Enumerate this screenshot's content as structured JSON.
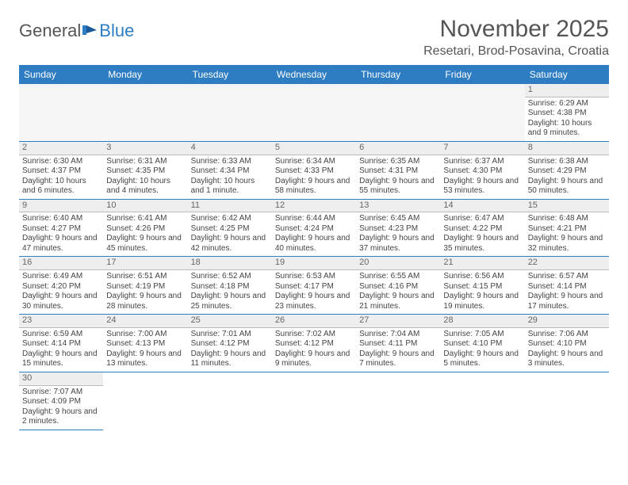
{
  "logo": {
    "text1": "General",
    "text2": "Blue"
  },
  "title": "November 2025",
  "location": "Resetari, Brod-Posavina, Croatia",
  "colors": {
    "header_bg": "#2e7cc2",
    "header_text": "#ffffff",
    "divider": "#2e7cc2",
    "daynum_bg": "#eeeeee",
    "text": "#444444"
  },
  "weekdays": [
    "Sunday",
    "Monday",
    "Tuesday",
    "Wednesday",
    "Thursday",
    "Friday",
    "Saturday"
  ],
  "weeks": [
    [
      null,
      null,
      null,
      null,
      null,
      null,
      {
        "n": "1",
        "sr": "Sunrise: 6:29 AM",
        "ss": "Sunset: 4:38 PM",
        "dl": "Daylight: 10 hours and 9 minutes."
      }
    ],
    [
      {
        "n": "2",
        "sr": "Sunrise: 6:30 AM",
        "ss": "Sunset: 4:37 PM",
        "dl": "Daylight: 10 hours and 6 minutes."
      },
      {
        "n": "3",
        "sr": "Sunrise: 6:31 AM",
        "ss": "Sunset: 4:35 PM",
        "dl": "Daylight: 10 hours and 4 minutes."
      },
      {
        "n": "4",
        "sr": "Sunrise: 6:33 AM",
        "ss": "Sunset: 4:34 PM",
        "dl": "Daylight: 10 hours and 1 minute."
      },
      {
        "n": "5",
        "sr": "Sunrise: 6:34 AM",
        "ss": "Sunset: 4:33 PM",
        "dl": "Daylight: 9 hours and 58 minutes."
      },
      {
        "n": "6",
        "sr": "Sunrise: 6:35 AM",
        "ss": "Sunset: 4:31 PM",
        "dl": "Daylight: 9 hours and 55 minutes."
      },
      {
        "n": "7",
        "sr": "Sunrise: 6:37 AM",
        "ss": "Sunset: 4:30 PM",
        "dl": "Daylight: 9 hours and 53 minutes."
      },
      {
        "n": "8",
        "sr": "Sunrise: 6:38 AM",
        "ss": "Sunset: 4:29 PM",
        "dl": "Daylight: 9 hours and 50 minutes."
      }
    ],
    [
      {
        "n": "9",
        "sr": "Sunrise: 6:40 AM",
        "ss": "Sunset: 4:27 PM",
        "dl": "Daylight: 9 hours and 47 minutes."
      },
      {
        "n": "10",
        "sr": "Sunrise: 6:41 AM",
        "ss": "Sunset: 4:26 PM",
        "dl": "Daylight: 9 hours and 45 minutes."
      },
      {
        "n": "11",
        "sr": "Sunrise: 6:42 AM",
        "ss": "Sunset: 4:25 PM",
        "dl": "Daylight: 9 hours and 42 minutes."
      },
      {
        "n": "12",
        "sr": "Sunrise: 6:44 AM",
        "ss": "Sunset: 4:24 PM",
        "dl": "Daylight: 9 hours and 40 minutes."
      },
      {
        "n": "13",
        "sr": "Sunrise: 6:45 AM",
        "ss": "Sunset: 4:23 PM",
        "dl": "Daylight: 9 hours and 37 minutes."
      },
      {
        "n": "14",
        "sr": "Sunrise: 6:47 AM",
        "ss": "Sunset: 4:22 PM",
        "dl": "Daylight: 9 hours and 35 minutes."
      },
      {
        "n": "15",
        "sr": "Sunrise: 6:48 AM",
        "ss": "Sunset: 4:21 PM",
        "dl": "Daylight: 9 hours and 32 minutes."
      }
    ],
    [
      {
        "n": "16",
        "sr": "Sunrise: 6:49 AM",
        "ss": "Sunset: 4:20 PM",
        "dl": "Daylight: 9 hours and 30 minutes."
      },
      {
        "n": "17",
        "sr": "Sunrise: 6:51 AM",
        "ss": "Sunset: 4:19 PM",
        "dl": "Daylight: 9 hours and 28 minutes."
      },
      {
        "n": "18",
        "sr": "Sunrise: 6:52 AM",
        "ss": "Sunset: 4:18 PM",
        "dl": "Daylight: 9 hours and 25 minutes."
      },
      {
        "n": "19",
        "sr": "Sunrise: 6:53 AM",
        "ss": "Sunset: 4:17 PM",
        "dl": "Daylight: 9 hours and 23 minutes."
      },
      {
        "n": "20",
        "sr": "Sunrise: 6:55 AM",
        "ss": "Sunset: 4:16 PM",
        "dl": "Daylight: 9 hours and 21 minutes."
      },
      {
        "n": "21",
        "sr": "Sunrise: 6:56 AM",
        "ss": "Sunset: 4:15 PM",
        "dl": "Daylight: 9 hours and 19 minutes."
      },
      {
        "n": "22",
        "sr": "Sunrise: 6:57 AM",
        "ss": "Sunset: 4:14 PM",
        "dl": "Daylight: 9 hours and 17 minutes."
      }
    ],
    [
      {
        "n": "23",
        "sr": "Sunrise: 6:59 AM",
        "ss": "Sunset: 4:14 PM",
        "dl": "Daylight: 9 hours and 15 minutes."
      },
      {
        "n": "24",
        "sr": "Sunrise: 7:00 AM",
        "ss": "Sunset: 4:13 PM",
        "dl": "Daylight: 9 hours and 13 minutes."
      },
      {
        "n": "25",
        "sr": "Sunrise: 7:01 AM",
        "ss": "Sunset: 4:12 PM",
        "dl": "Daylight: 9 hours and 11 minutes."
      },
      {
        "n": "26",
        "sr": "Sunrise: 7:02 AM",
        "ss": "Sunset: 4:12 PM",
        "dl": "Daylight: 9 hours and 9 minutes."
      },
      {
        "n": "27",
        "sr": "Sunrise: 7:04 AM",
        "ss": "Sunset: 4:11 PM",
        "dl": "Daylight: 9 hours and 7 minutes."
      },
      {
        "n": "28",
        "sr": "Sunrise: 7:05 AM",
        "ss": "Sunset: 4:10 PM",
        "dl": "Daylight: 9 hours and 5 minutes."
      },
      {
        "n": "29",
        "sr": "Sunrise: 7:06 AM",
        "ss": "Sunset: 4:10 PM",
        "dl": "Daylight: 9 hours and 3 minutes."
      }
    ],
    [
      {
        "n": "30",
        "sr": "Sunrise: 7:07 AM",
        "ss": "Sunset: 4:09 PM",
        "dl": "Daylight: 9 hours and 2 minutes."
      },
      null,
      null,
      null,
      null,
      null,
      null
    ]
  ]
}
